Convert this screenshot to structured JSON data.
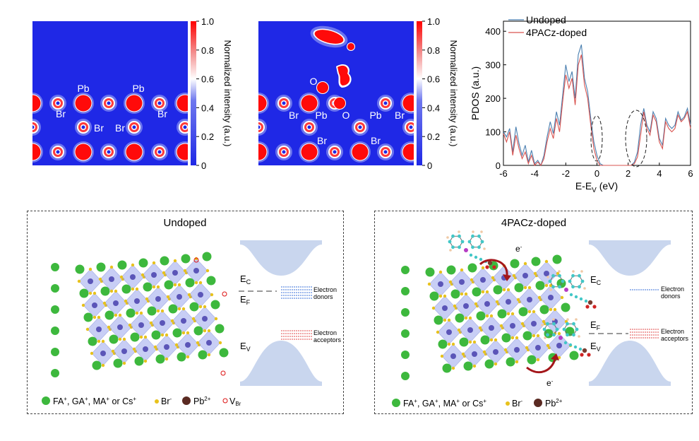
{
  "colorbar": {
    "title": "Normalized intensity (a.u.)",
    "ticks": [
      "1.0",
      "0.8",
      "0.6",
      "0.4",
      "0.2",
      "0"
    ]
  },
  "map_a": {
    "labels": [
      {
        "text": "Pb",
        "kind": "Pb"
      },
      {
        "text": "Pb",
        "kind": "Pb"
      },
      {
        "text": "Br",
        "kind": "Br"
      },
      {
        "text": "Br",
        "kind": "Br"
      },
      {
        "text": "Br",
        "kind": "Br"
      },
      {
        "text": "Br",
        "kind": "Br"
      }
    ]
  },
  "map_b": {
    "labels": [
      {
        "text": "O",
        "kind": "O"
      },
      {
        "text": "O",
        "kind": "O"
      },
      {
        "text": "Br",
        "kind": "Br"
      },
      {
        "text": "Pb",
        "kind": "Pb"
      },
      {
        "text": "Pb",
        "kind": "Pb"
      },
      {
        "text": "Br",
        "kind": "Br"
      },
      {
        "text": "Br",
        "kind": "Br"
      },
      {
        "text": "Br",
        "kind": "Br"
      }
    ]
  },
  "chart_data": {
    "type": "line",
    "title": "",
    "xlabel": "E-E",
    "xlabel_sub": "V",
    "xlabel_unit": " (eV)",
    "ylabel": "PDOS (a.u.)",
    "xlim": [
      -6,
      6
    ],
    "ylim": [
      0,
      430
    ],
    "xticks": [
      -6,
      -4,
      -2,
      0,
      2,
      4,
      6
    ],
    "yticks": [
      0,
      100,
      200,
      300,
      400
    ],
    "legend_position": "top-left",
    "series": [
      {
        "name": "Undoped",
        "color": "#4a7fb0",
        "x": [
          -6,
          -5.8,
          -5.6,
          -5.4,
          -5.2,
          -5,
          -4.8,
          -4.6,
          -4.4,
          -4.2,
          -4,
          -3.8,
          -3.6,
          -3.4,
          -3.2,
          -3,
          -2.8,
          -2.6,
          -2.4,
          -2.2,
          -2,
          -1.8,
          -1.6,
          -1.4,
          -1.2,
          -1,
          -0.8,
          -0.6,
          -0.4,
          -0.2,
          0,
          0.2,
          0.4,
          0.6,
          0.8,
          1,
          1.2,
          1.4,
          1.6,
          1.8,
          2,
          2.2,
          2.4,
          2.6,
          2.8,
          3,
          3.2,
          3.4,
          3.6,
          3.8,
          4,
          4.2,
          4.4,
          4.6,
          4.8,
          5,
          5.2,
          5.4,
          5.6,
          5.8,
          6
        ],
        "y": [
          100,
          85,
          110,
          40,
          115,
          65,
          30,
          60,
          10,
          45,
          5,
          15,
          0,
          30,
          85,
          130,
          95,
          160,
          120,
          210,
          300,
          250,
          280,
          200,
          330,
          360,
          260,
          220,
          140,
          70,
          30,
          5,
          0,
          0,
          0,
          0,
          0,
          0,
          0,
          0,
          0,
          0,
          10,
          40,
          120,
          170,
          120,
          100,
          160,
          140,
          80,
          60,
          140,
          120,
          110,
          120,
          160,
          135,
          145,
          170,
          120
        ]
      },
      {
        "name": "4PACz-doped",
        "color": "#d9534f",
        "x": [
          -6,
          -5.8,
          -5.6,
          -5.4,
          -5.2,
          -5,
          -4.8,
          -4.6,
          -4.4,
          -4.2,
          -4,
          -3.8,
          -3.6,
          -3.4,
          -3.2,
          -3,
          -2.8,
          -2.6,
          -2.4,
          -2.2,
          -2,
          -1.8,
          -1.6,
          -1.4,
          -1.2,
          -1,
          -0.8,
          -0.6,
          -0.4,
          -0.2,
          0,
          0.2,
          0.4,
          0.6,
          0.8,
          1,
          1.2,
          1.4,
          1.6,
          1.8,
          2,
          2.2,
          2.4,
          2.6,
          2.8,
          3,
          3.2,
          3.4,
          3.6,
          3.8,
          4,
          4.2,
          4.4,
          4.6,
          4.8,
          5,
          5.2,
          5.4,
          5.6,
          5.8,
          6
        ],
        "y": [
          95,
          70,
          100,
          30,
          90,
          50,
          20,
          40,
          5,
          30,
          0,
          10,
          0,
          20,
          70,
          110,
          80,
          140,
          100,
          190,
          270,
          230,
          260,
          180,
          300,
          330,
          240,
          200,
          120,
          50,
          15,
          0,
          0,
          0,
          0,
          0,
          0,
          0,
          0,
          0,
          0,
          0,
          5,
          25,
          90,
          160,
          110,
          90,
          150,
          130,
          70,
          50,
          130,
          110,
          100,
          110,
          150,
          130,
          140,
          160,
          110
        ]
      }
    ]
  },
  "box_undoped": {
    "title": "Undoped",
    "ec_main": "E",
    "ec_sub": "C",
    "ef_main": "E",
    "ef_sub": "F",
    "ev_main": "E",
    "ev_sub": "V",
    "donors_line1": "Electron",
    "donors_line2": "donors",
    "acceptors_line1": "Electron",
    "acceptors_line2": "acceptors",
    "legend_cation": "FA",
    "legend_cation_rest": ", GA",
    "legend_cation_rest2": ", MA",
    "legend_cation_rest3": " or Cs",
    "legend_plus": "+",
    "legend_br": "Br",
    "legend_minus": "-",
    "legend_pb": "Pb",
    "legend_pb_sup": "2+",
    "legend_v": "V",
    "legend_v_sub": "Br"
  },
  "box_doped": {
    "title": "4PACz-doped",
    "ec_main": "E",
    "ec_sub": "C",
    "ef_main": "E",
    "ef_sub": "F",
    "ev_main": "E",
    "ev_sub": "V",
    "donors_line1": "Electron",
    "donors_line2": "donors",
    "acceptors_line1": "Electron",
    "acceptors_line2": "acceptors",
    "electron_top": "e",
    "electron_bottom": "e",
    "electron_sup": "-"
  },
  "colors": {
    "map_bg": "#1f28e6",
    "atom_red": "#ff0a0a",
    "ring_blue": "#1f28e6",
    "green_atom": "#3db83d",
    "yellow_atom": "#e8c21c",
    "pb_atom": "#5a2a22",
    "octahedra": "#9aa6ec",
    "band": "#c9d6ee",
    "arrow": "#a4161a"
  }
}
